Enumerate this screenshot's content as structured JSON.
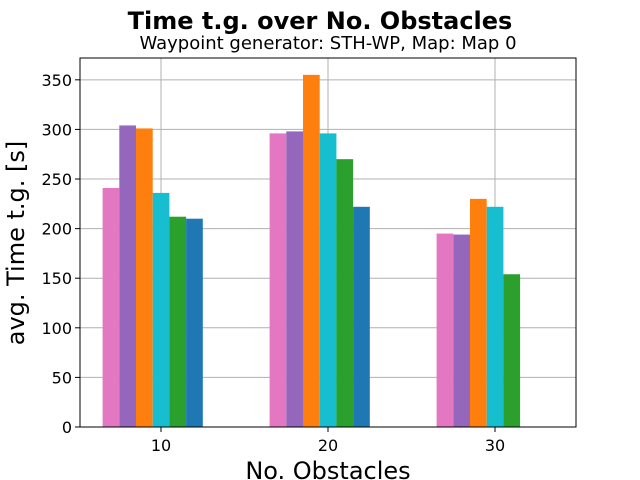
{
  "chart_data": {
    "type": "bar",
    "title": "Time t.g. over No. Obstacles",
    "subtitle": "Waypoint generator: STH-WP, Map: Map 0",
    "xlabel": "No. Obstacles",
    "ylabel": "avg. Time t.g. [s]",
    "categories": [
      "10",
      "20",
      "30"
    ],
    "ylim": [
      0,
      372
    ],
    "yticks": [
      "0",
      "50",
      "100",
      "150",
      "200",
      "250",
      "300",
      "350"
    ],
    "grid": true,
    "series": [
      {
        "color": "#e377c2",
        "values": [
          241,
          296,
          195
        ]
      },
      {
        "color": "#9467bd",
        "values": [
          304,
          298,
          194
        ]
      },
      {
        "color": "#ff7f0e",
        "values": [
          301,
          355,
          230
        ]
      },
      {
        "color": "#17becf",
        "values": [
          236,
          296,
          222
        ]
      },
      {
        "color": "#2ca02c",
        "values": [
          212,
          270,
          154
        ]
      },
      {
        "color": "#1f77b4",
        "values": [
          210,
          222,
          null
        ]
      }
    ]
  }
}
